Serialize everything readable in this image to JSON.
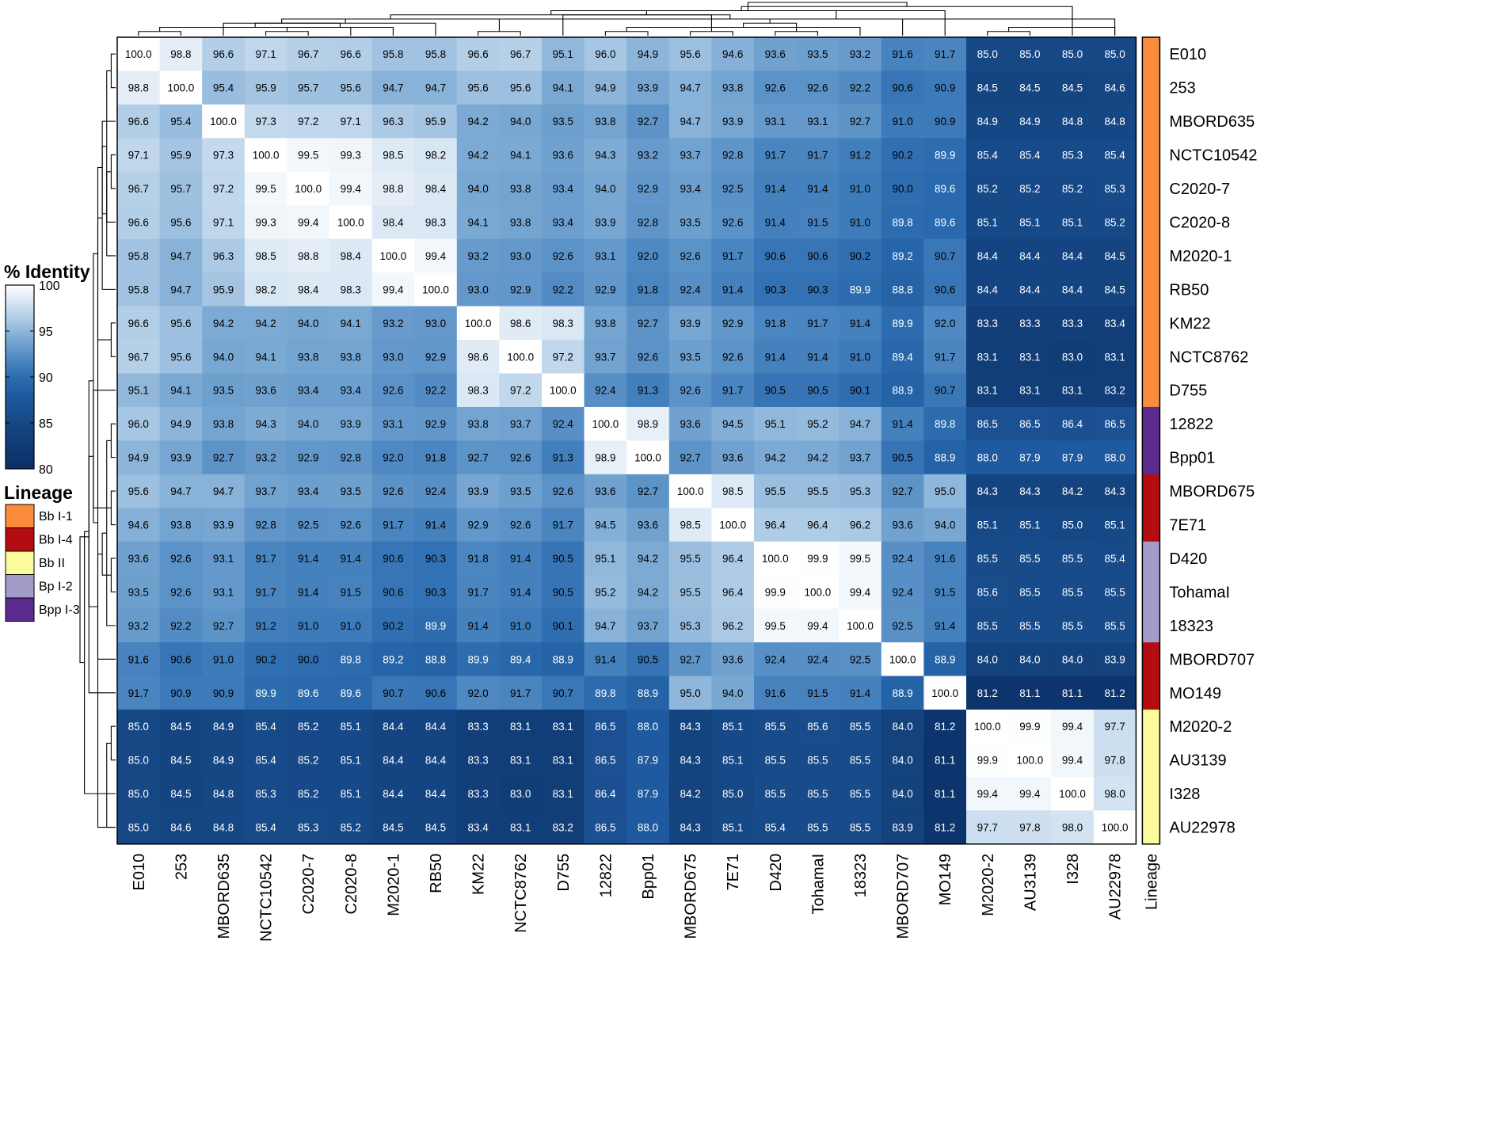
{
  "chart_data": {
    "type": "heatmap",
    "rows": [
      "E010",
      "253",
      "MBORD635",
      "NCTC10542",
      "C2020-7",
      "C2020-8",
      "M2020-1",
      "RB50",
      "KM22",
      "NCTC8762",
      "D755",
      "12822",
      "Bpp01",
      "MBORD675",
      "7E71",
      "D420",
      "TohamaI",
      "18323",
      "MBORD707",
      "MO149",
      "M2020-2",
      "AU3139",
      "I328",
      "AU22978"
    ],
    "columns": [
      "E010",
      "253",
      "MBORD635",
      "NCTC10542",
      "C2020-7",
      "C2020-8",
      "M2020-1",
      "RB50",
      "KM22",
      "NCTC8762",
      "D755",
      "12822",
      "Bpp01",
      "MBORD675",
      "7E71",
      "D420",
      "TohamaI",
      "18323",
      "MBORD707",
      "MO149",
      "M2020-2",
      "AU3139",
      "I328",
      "AU22978"
    ],
    "values": [
      [
        100.0,
        98.8,
        96.6,
        97.1,
        96.7,
        96.6,
        95.8,
        95.8,
        96.6,
        96.7,
        95.1,
        96.0,
        94.9,
        95.6,
        94.6,
        93.6,
        93.5,
        93.2,
        91.6,
        91.7,
        85.0,
        85.0,
        85.0,
        85.0
      ],
      [
        98.8,
        100.0,
        95.4,
        95.9,
        95.7,
        95.6,
        94.7,
        94.7,
        95.6,
        95.6,
        94.1,
        94.9,
        93.9,
        94.7,
        93.8,
        92.6,
        92.6,
        92.2,
        90.6,
        90.9,
        84.5,
        84.5,
        84.5,
        84.6
      ],
      [
        96.6,
        95.4,
        100.0,
        97.3,
        97.2,
        97.1,
        96.3,
        95.9,
        94.2,
        94.0,
        93.5,
        93.8,
        92.7,
        94.7,
        93.9,
        93.1,
        93.1,
        92.7,
        91.0,
        90.9,
        84.9,
        84.9,
        84.8,
        84.8
      ],
      [
        97.1,
        95.9,
        97.3,
        100.0,
        99.5,
        99.3,
        98.5,
        98.2,
        94.2,
        94.1,
        93.6,
        94.3,
        93.2,
        93.7,
        92.8,
        91.7,
        91.7,
        91.2,
        90.2,
        89.9,
        85.4,
        85.4,
        85.3,
        85.4
      ],
      [
        96.7,
        95.7,
        97.2,
        99.5,
        100.0,
        99.4,
        98.8,
        98.4,
        94.0,
        93.8,
        93.4,
        94.0,
        92.9,
        93.4,
        92.5,
        91.4,
        91.4,
        91.0,
        90.0,
        89.6,
        85.2,
        85.2,
        85.2,
        85.3
      ],
      [
        96.6,
        95.6,
        97.1,
        99.3,
        99.4,
        100.0,
        98.4,
        98.3,
        94.1,
        93.8,
        93.4,
        93.9,
        92.8,
        93.5,
        92.6,
        91.4,
        91.5,
        91.0,
        89.8,
        89.6,
        85.1,
        85.1,
        85.1,
        85.2
      ],
      [
        95.8,
        94.7,
        96.3,
        98.5,
        98.8,
        98.4,
        100.0,
        99.4,
        93.2,
        93.0,
        92.6,
        93.1,
        92.0,
        92.6,
        91.7,
        90.6,
        90.6,
        90.2,
        89.2,
        90.7,
        84.4,
        84.4,
        84.4,
        84.5
      ],
      [
        95.8,
        94.7,
        95.9,
        98.2,
        98.4,
        98.3,
        99.4,
        100.0,
        93.0,
        92.9,
        92.2,
        92.9,
        91.8,
        92.4,
        91.4,
        90.3,
        90.3,
        89.9,
        88.8,
        90.6,
        84.4,
        84.4,
        84.4,
        84.5
      ],
      [
        96.6,
        95.6,
        94.2,
        94.2,
        94.0,
        94.1,
        93.2,
        93.0,
        100.0,
        98.6,
        98.3,
        93.8,
        92.7,
        93.9,
        92.9,
        91.8,
        91.7,
        91.4,
        89.9,
        92.0,
        83.3,
        83.3,
        83.3,
        83.4
      ],
      [
        96.7,
        95.6,
        94.0,
        94.1,
        93.8,
        93.8,
        93.0,
        92.9,
        98.6,
        100.0,
        97.2,
        93.7,
        92.6,
        93.5,
        92.6,
        91.4,
        91.4,
        91.0,
        89.4,
        91.7,
        83.1,
        83.1,
        83.0,
        83.1
      ],
      [
        95.1,
        94.1,
        93.5,
        93.6,
        93.4,
        93.4,
        92.6,
        92.2,
        98.3,
        97.2,
        100.0,
        92.4,
        91.3,
        92.6,
        91.7,
        90.5,
        90.5,
        90.1,
        88.9,
        90.7,
        83.1,
        83.1,
        83.1,
        83.2
      ],
      [
        96.0,
        94.9,
        93.8,
        94.3,
        94.0,
        93.9,
        93.1,
        92.9,
        93.8,
        93.7,
        92.4,
        100.0,
        98.9,
        93.6,
        94.5,
        95.1,
        95.2,
        94.7,
        91.4,
        89.8,
        86.5,
        86.5,
        86.4,
        86.5
      ],
      [
        94.9,
        93.9,
        92.7,
        93.2,
        92.9,
        92.8,
        92.0,
        91.8,
        92.7,
        92.6,
        91.3,
        98.9,
        100.0,
        92.7,
        93.6,
        94.2,
        94.2,
        93.7,
        90.5,
        88.9,
        88.0,
        87.9,
        87.9,
        88.0
      ],
      [
        95.6,
        94.7,
        94.7,
        93.7,
        93.4,
        93.5,
        92.6,
        92.4,
        93.9,
        93.5,
        92.6,
        93.6,
        92.7,
        100.0,
        98.5,
        95.5,
        95.5,
        95.3,
        92.7,
        95.0,
        84.3,
        84.3,
        84.2,
        84.3
      ],
      [
        94.6,
        93.8,
        93.9,
        92.8,
        92.5,
        92.6,
        91.7,
        91.4,
        92.9,
        92.6,
        91.7,
        94.5,
        93.6,
        98.5,
        100.0,
        96.4,
        96.4,
        96.2,
        93.6,
        94.0,
        85.1,
        85.1,
        85.0,
        85.1
      ],
      [
        93.6,
        92.6,
        93.1,
        91.7,
        91.4,
        91.4,
        90.6,
        90.3,
        91.8,
        91.4,
        90.5,
        95.1,
        94.2,
        95.5,
        96.4,
        100.0,
        99.9,
        99.5,
        92.4,
        91.6,
        85.5,
        85.5,
        85.5,
        85.4
      ],
      [
        93.5,
        92.6,
        93.1,
        91.7,
        91.4,
        91.5,
        90.6,
        90.3,
        91.7,
        91.4,
        90.5,
        95.2,
        94.2,
        95.5,
        96.4,
        99.9,
        100.0,
        99.4,
        92.4,
        91.5,
        85.6,
        85.5,
        85.5,
        85.5
      ],
      [
        93.2,
        92.2,
        92.7,
        91.2,
        91.0,
        91.0,
        90.2,
        89.9,
        91.4,
        91.0,
        90.1,
        94.7,
        93.7,
        95.3,
        96.2,
        99.5,
        99.4,
        100.0,
        92.5,
        91.4,
        85.5,
        85.5,
        85.5,
        85.5
      ],
      [
        91.6,
        90.6,
        91.0,
        90.2,
        90.0,
        89.8,
        89.2,
        88.8,
        89.9,
        89.4,
        88.9,
        91.4,
        90.5,
        92.7,
        93.6,
        92.4,
        92.4,
        92.5,
        100.0,
        88.9,
        84.0,
        84.0,
        84.0,
        83.9
      ],
      [
        91.7,
        90.9,
        90.9,
        89.9,
        89.6,
        89.6,
        90.7,
        90.6,
        92.0,
        91.7,
        90.7,
        89.8,
        88.9,
        95.0,
        94.0,
        91.6,
        91.5,
        91.4,
        88.9,
        100.0,
        81.2,
        81.1,
        81.1,
        81.2
      ],
      [
        85.0,
        84.5,
        84.9,
        85.4,
        85.2,
        85.1,
        84.4,
        84.4,
        83.3,
        83.1,
        83.1,
        86.5,
        88.0,
        84.3,
        85.1,
        85.5,
        85.6,
        85.5,
        84.0,
        81.2,
        100.0,
        99.9,
        99.4,
        97.7
      ],
      [
        85.0,
        84.5,
        84.9,
        85.4,
        85.2,
        85.1,
        84.4,
        84.4,
        83.3,
        83.1,
        83.1,
        86.5,
        87.9,
        84.3,
        85.1,
        85.5,
        85.5,
        85.5,
        84.0,
        81.1,
        99.9,
        100.0,
        99.4,
        97.8
      ],
      [
        85.0,
        84.5,
        84.8,
        85.3,
        85.2,
        85.1,
        84.4,
        84.4,
        83.3,
        83.0,
        83.1,
        86.4,
        87.9,
        84.2,
        85.0,
        85.5,
        85.5,
        85.5,
        84.0,
        81.1,
        99.4,
        99.4,
        100.0,
        98.0
      ],
      [
        85.0,
        84.6,
        84.8,
        85.4,
        85.3,
        85.2,
        84.5,
        84.5,
        83.4,
        83.1,
        83.2,
        86.5,
        88.0,
        84.3,
        85.1,
        85.4,
        85.5,
        85.5,
        83.9,
        81.2,
        97.7,
        97.8,
        98.0,
        100.0
      ]
    ],
    "value_range": [
      80,
      100
    ],
    "colorbar": {
      "title": "% Identity",
      "ticks": [
        100,
        95,
        90,
        85,
        80
      ],
      "stops": [
        {
          "v": 80,
          "c": "#0b2f66"
        },
        {
          "v": 84,
          "c": "#13427d"
        },
        {
          "v": 88,
          "c": "#1f5aa0"
        },
        {
          "v": 90,
          "c": "#2d6db0"
        },
        {
          "v": 92,
          "c": "#4f89c3"
        },
        {
          "v": 94,
          "c": "#78a7d2"
        },
        {
          "v": 96,
          "c": "#a6c6e3"
        },
        {
          "v": 98,
          "c": "#d3e3f2"
        },
        {
          "v": 100,
          "c": "#ffffff"
        }
      ]
    },
    "annotation": {
      "label": "Lineage",
      "row_lineage": [
        "Bb I-1",
        "Bb I-1",
        "Bb I-1",
        "Bb I-1",
        "Bb I-1",
        "Bb I-1",
        "Bb I-1",
        "Bb I-1",
        "Bb I-1",
        "Bb I-1",
        "Bb I-1",
        "Bpp I-3",
        "Bpp I-3",
        "Bb I-4",
        "Bb I-4",
        "Bp I-2",
        "Bp I-2",
        "Bp I-2",
        "Bb I-4",
        "Bb I-4",
        "Bb II",
        "Bb II",
        "Bb II",
        "Bb II"
      ],
      "legend_title": "Lineage",
      "legend": [
        {
          "label": "Bb I-1",
          "color": "#fb8c3b"
        },
        {
          "label": "Bb I-4",
          "color": "#b30d12"
        },
        {
          "label": "Bb II",
          "color": "#fbfb9c"
        },
        {
          "label": "Bp I-2",
          "color": "#a29cc9"
        },
        {
          "label": "Bpp I-3",
          "color": "#5a2a8f"
        }
      ]
    },
    "dendrogram": {
      "type": "hierarchical-clustering",
      "merges": [
        [
          0,
          1
        ],
        [
          3,
          4
        ],
        [
          24,
          5
        ],
        [
          25,
          6
        ],
        [
          26,
          7
        ],
        [
          2,
          27
        ],
        [
          23,
          28
        ],
        [
          8,
          9
        ],
        [
          30,
          10
        ],
        [
          29,
          31
        ],
        [
          11,
          12
        ],
        [
          15,
          16
        ],
        [
          34,
          17
        ],
        [
          13,
          14
        ],
        [
          36,
          35
        ],
        [
          33,
          37
        ],
        [
          38,
          18
        ],
        [
          39,
          19
        ],
        [
          32,
          40
        ],
        [
          20,
          21
        ],
        [
          42,
          22
        ],
        [
          43,
          23
        ],
        [
          41,
          44
        ]
      ]
    },
    "grid": false
  }
}
